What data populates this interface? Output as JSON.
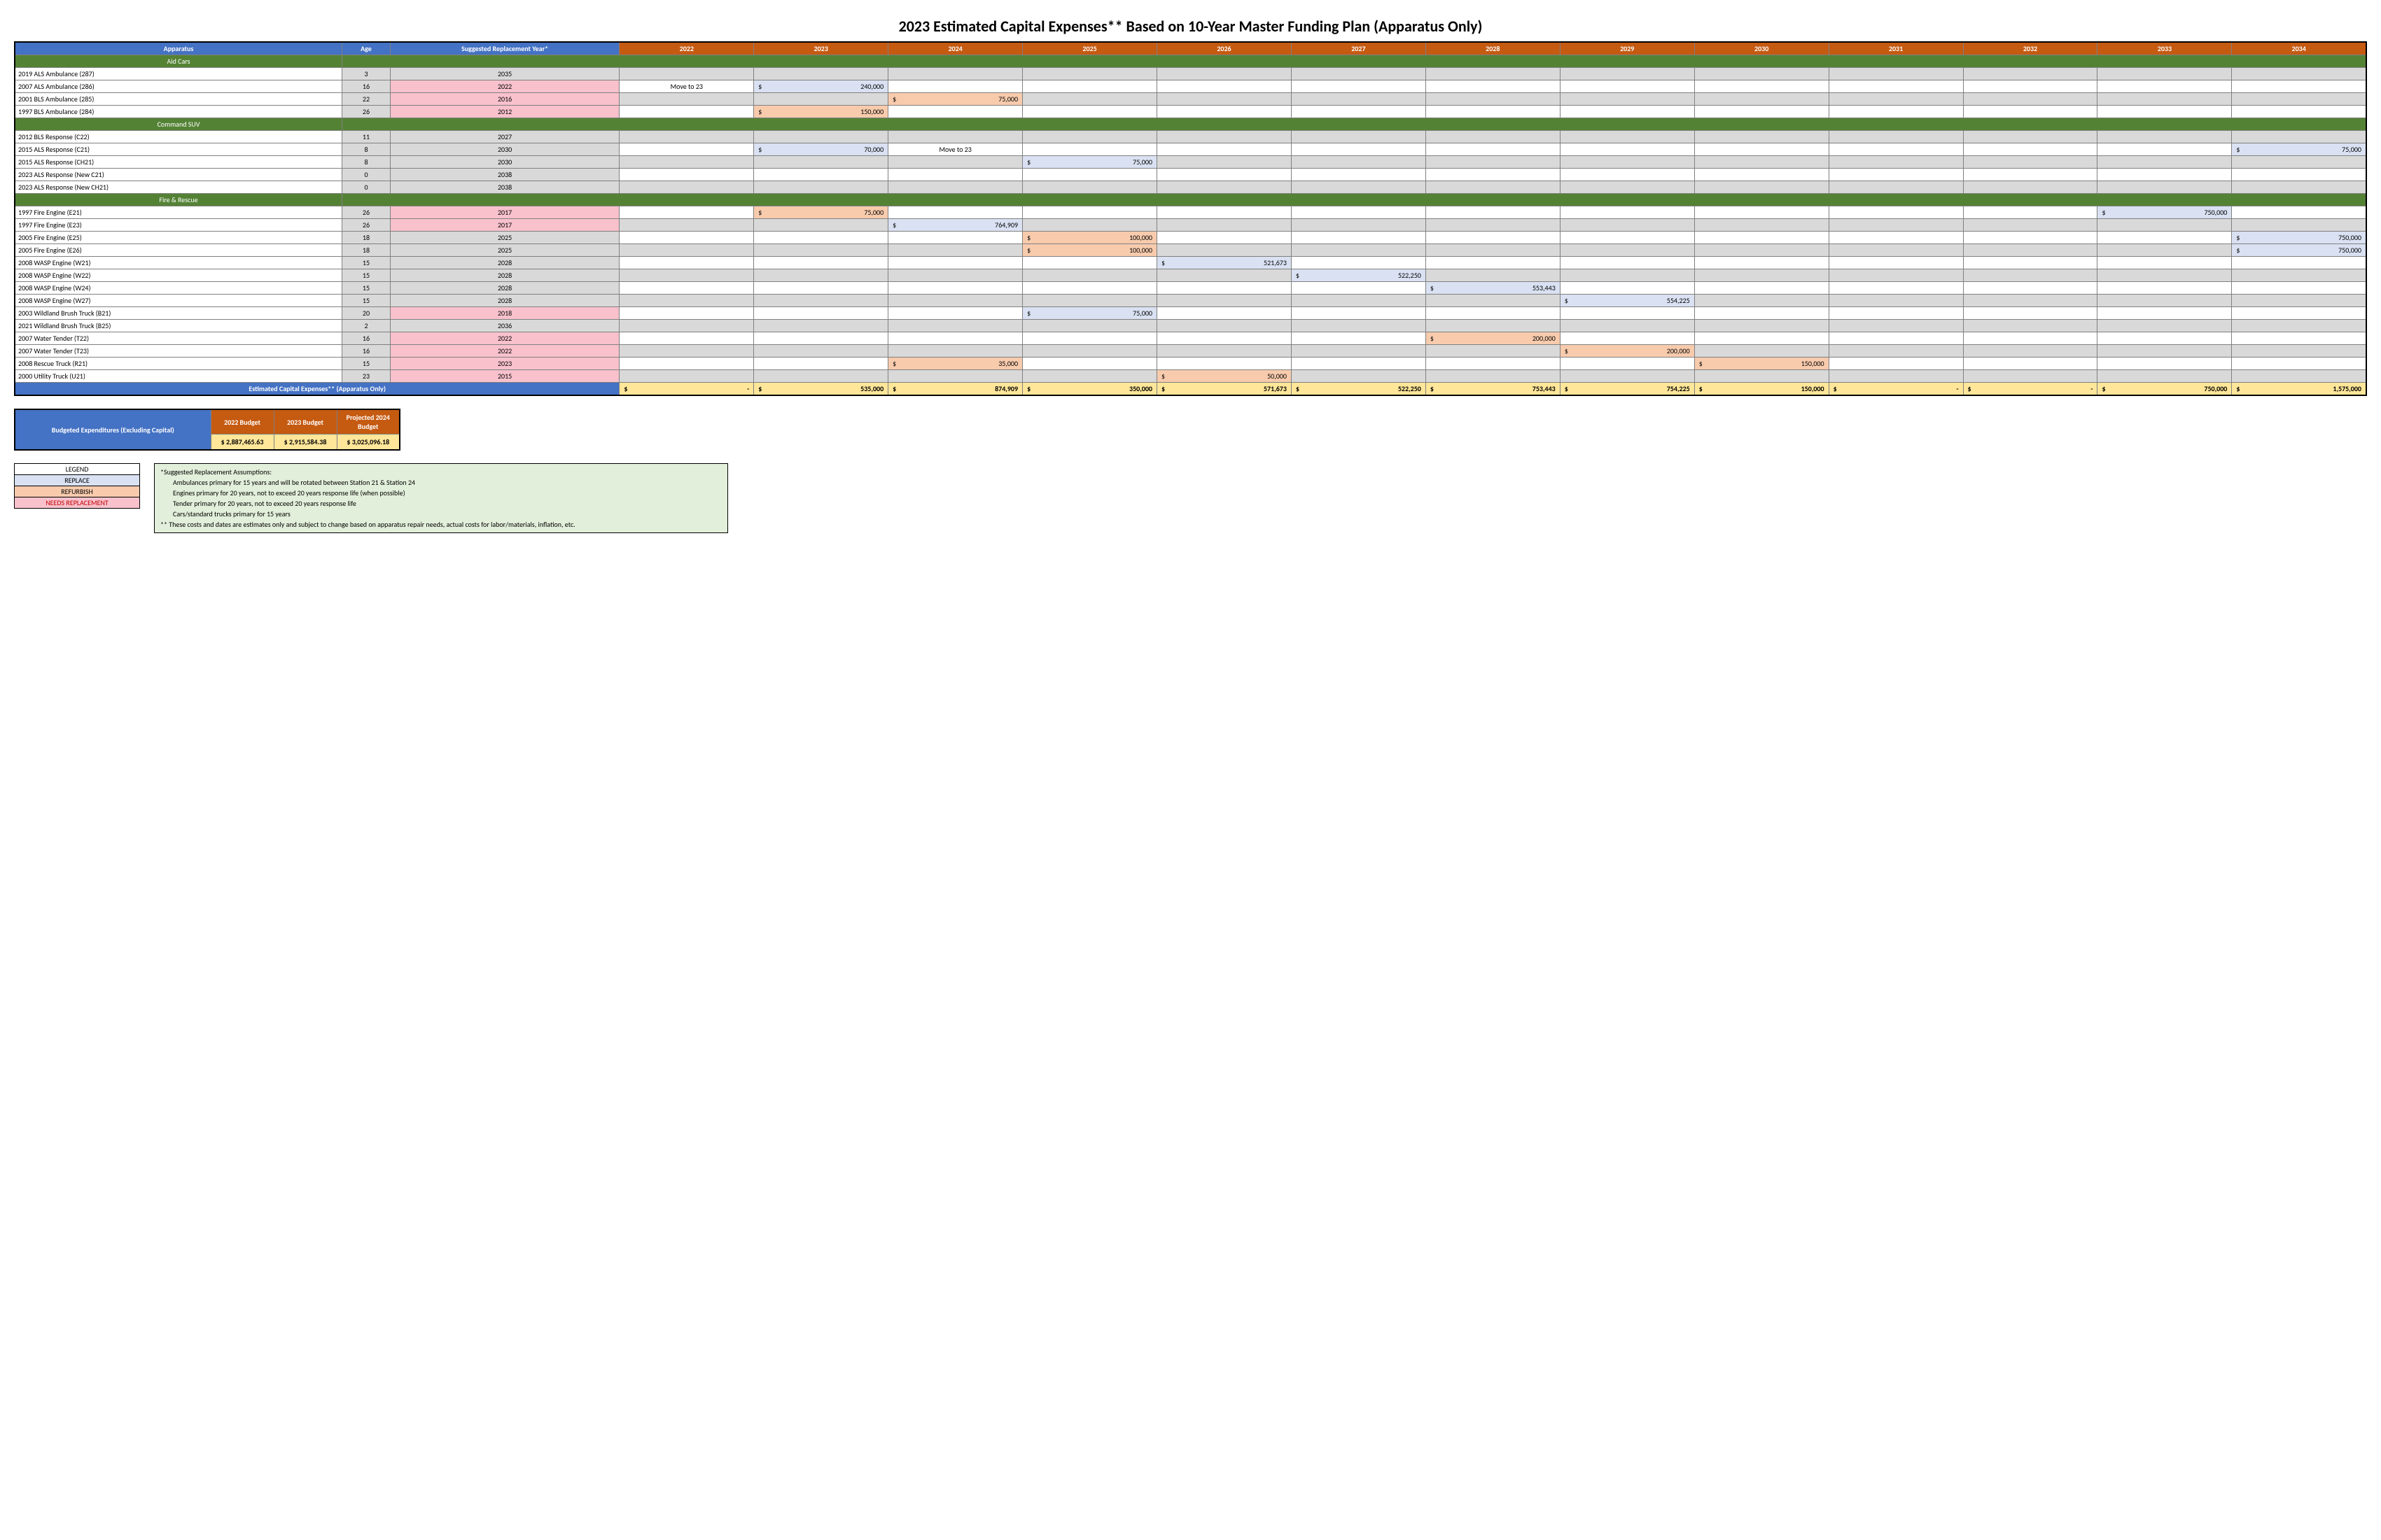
{
  "title": "2023 Estimated Capital Expenses** Based on 10-Year Master Funding Plan (Apparatus Only)",
  "headers": {
    "apparatus": "Apparatus",
    "age": "Age",
    "sry": "Suggested Replacement Year*",
    "years": [
      "2022",
      "2023",
      "2024",
      "2025",
      "2026",
      "2027",
      "2028",
      "2029",
      "2030",
      "2031",
      "2032",
      "2033",
      "2034"
    ]
  },
  "sections": [
    {
      "label": "Aid Cars",
      "rows": [
        {
          "name": "2019 ALS Ambulance (287)",
          "age": "3",
          "sry": "2035",
          "sry_pink": false,
          "shade": "grey",
          "cells": {}
        },
        {
          "name": "2007 ALS Ambulance (286)",
          "age": "16",
          "sry": "2022",
          "sry_pink": true,
          "shade": "white",
          "cells": {
            "2022": {
              "text": "Move to 23",
              "type": "plain",
              "align": "center"
            },
            "2023": {
              "text": "240,000",
              "type": "replace"
            }
          }
        },
        {
          "name": "2001 BLS Ambulance (285)",
          "age": "22",
          "sry": "2016",
          "sry_pink": true,
          "shade": "grey",
          "cells": {
            "2024": {
              "text": "75,000",
              "type": "refurb"
            }
          }
        },
        {
          "name": "1997 BLS Ambulance (284)",
          "age": "26",
          "sry": "2012",
          "sry_pink": true,
          "shade": "white",
          "cells": {
            "2023": {
              "text": "150,000",
              "type": "refurb"
            }
          }
        }
      ]
    },
    {
      "label": "Command SUV",
      "rows": [
        {
          "name": "2012 BLS Response (C22)",
          "age": "11",
          "sry": "2027",
          "sry_pink": false,
          "shade": "grey",
          "cells": {}
        },
        {
          "name": "2015 ALS Response (C21)",
          "age": "8",
          "sry": "2030",
          "sry_pink": false,
          "shade": "white",
          "cells": {
            "2023": {
              "text": "70,000",
              "type": "replace"
            },
            "2024": {
              "text": "Move to 23",
              "type": "plain",
              "align": "center"
            },
            "2034": {
              "text": "75,000",
              "type": "replace"
            }
          }
        },
        {
          "name": "2015 ALS Response (CH21)",
          "age": "8",
          "sry": "2030",
          "sry_pink": false,
          "shade": "grey",
          "cells": {
            "2025": {
              "text": "75,000",
              "type": "replace"
            }
          }
        },
        {
          "name": "2023 ALS Response (New C21)",
          "age": "0",
          "sry": "2038",
          "sry_pink": false,
          "shade": "white",
          "cells": {}
        },
        {
          "name": "2023 ALS Response (New CH21)",
          "age": "0",
          "sry": "2038",
          "sry_pink": false,
          "shade": "grey",
          "cells": {}
        }
      ]
    },
    {
      "label": "Fire & Rescue",
      "rows": [
        {
          "name": "1997 Fire Engine (E21)",
          "age": "26",
          "sry": "2017",
          "sry_pink": true,
          "shade": "white",
          "cells": {
            "2023": {
              "text": "75,000",
              "type": "refurb"
            },
            "2033": {
              "text": "750,000",
              "type": "replace"
            }
          }
        },
        {
          "name": "1997 Fire Engine (E23)",
          "age": "26",
          "sry": "2017",
          "sry_pink": true,
          "shade": "grey",
          "cells": {
            "2024": {
              "text": "764,909",
              "type": "replace"
            }
          }
        },
        {
          "name": "2005 Fire Engine (E25)",
          "age": "18",
          "sry": "2025",
          "sry_pink": false,
          "shade": "white",
          "cells": {
            "2025": {
              "text": "100,000",
              "type": "refurb"
            },
            "2034": {
              "text": "750,000",
              "type": "replace"
            }
          }
        },
        {
          "name": "2005 Fire Engine (E26)",
          "age": "18",
          "sry": "2025",
          "sry_pink": false,
          "shade": "grey",
          "cells": {
            "2025": {
              "text": "100,000",
              "type": "refurb"
            },
            "2034": {
              "text": "750,000",
              "type": "replace"
            }
          }
        },
        {
          "name": "2008 WASP Engine (W21)",
          "age": "15",
          "sry": "2028",
          "sry_pink": false,
          "shade": "white",
          "cells": {
            "2026": {
              "text": "521,673",
              "type": "replace"
            }
          }
        },
        {
          "name": "2008 WASP Engine (W22)",
          "age": "15",
          "sry": "2028",
          "sry_pink": false,
          "shade": "grey",
          "cells": {
            "2027": {
              "text": "522,250",
              "type": "replace"
            }
          }
        },
        {
          "name": "2008 WASP Engine (W24)",
          "age": "15",
          "sry": "2028",
          "sry_pink": false,
          "shade": "white",
          "cells": {
            "2028": {
              "text": "553,443",
              "type": "replace"
            }
          }
        },
        {
          "name": "2008 WASP Engine (W27)",
          "age": "15",
          "sry": "2028",
          "sry_pink": false,
          "shade": "grey",
          "cells": {
            "2029": {
              "text": "554,225",
              "type": "replace"
            }
          }
        },
        {
          "name": "2003 Wildland Brush Truck (B21)",
          "age": "20",
          "sry": "2018",
          "sry_pink": true,
          "shade": "white",
          "cells": {
            "2025": {
              "text": "75,000",
              "type": "replace"
            }
          }
        },
        {
          "name": "2021 Wildland Brush Truck (B25)",
          "age": "2",
          "sry": "2036",
          "sry_pink": false,
          "shade": "grey",
          "cells": {}
        },
        {
          "name": "2007 Water Tender (T22)",
          "age": "16",
          "sry": "2022",
          "sry_pink": true,
          "shade": "white",
          "cells": {
            "2028": {
              "text": "200,000",
              "type": "refurb"
            }
          }
        },
        {
          "name": "2007 Water Tender (T23)",
          "age": "16",
          "sry": "2022",
          "sry_pink": true,
          "shade": "grey",
          "cells": {
            "2029": {
              "text": "200,000",
              "type": "refurb"
            }
          }
        },
        {
          "name": "2008 Rescue Truck (R21)",
          "age": "15",
          "sry": "2023",
          "sry_pink": true,
          "shade": "white",
          "cells": {
            "2024": {
              "text": "35,000",
              "type": "refurb"
            },
            "2030": {
              "text": "150,000",
              "type": "refurb"
            }
          }
        },
        {
          "name": "2000 Utility Truck (U21)",
          "age": "23",
          "sry": "2015",
          "sry_pink": true,
          "shade": "grey",
          "cells": {
            "2026": {
              "text": "50,000",
              "type": "refurb"
            }
          }
        }
      ]
    }
  ],
  "totals": {
    "label": "Estimated Capital Expenses** (Apparatus Only)",
    "values": {
      "2022": "-",
      "2023": "535,000",
      "2024": "874,909",
      "2025": "350,000",
      "2026": "571,673",
      "2027": "522,250",
      "2028": "753,443",
      "2029": "754,225",
      "2030": "150,000",
      "2031": "-",
      "2032": "-",
      "2033": "750,000",
      "2034": "1,575,000"
    }
  },
  "budget": {
    "label": "Budgeted Expenditures (Excluding Capital)",
    "cols": [
      "2022 Budget",
      "2023 Budget",
      "Projected 2024 Budget"
    ],
    "vals": [
      "$ 2,887,465.63",
      "$ 2,915,584.38",
      "$ 3,025,096.18"
    ]
  },
  "legend": {
    "title": "LEGEND",
    "replace": "REPLACE",
    "refurb": "REFURBISH",
    "needs": "NEEDS REPLACEMENT"
  },
  "notes": {
    "h": "*Suggested Replacement Assumptions:",
    "l1": "Ambulances primary for 15 years and will be rotated between Station 21 & Station 24",
    "l2": "Engines primary for 20 years, not to exceed 20 years response life (when possible)",
    "l3": "Tender primary for 20 years, not to exceed 20 years response life",
    "l4": "Cars/standard trucks primary for 15 years",
    "f": "** These costs and dates are estimates only and subject to change based on apparatus repair needs, actual costs for labor/materials, inflation, etc."
  }
}
